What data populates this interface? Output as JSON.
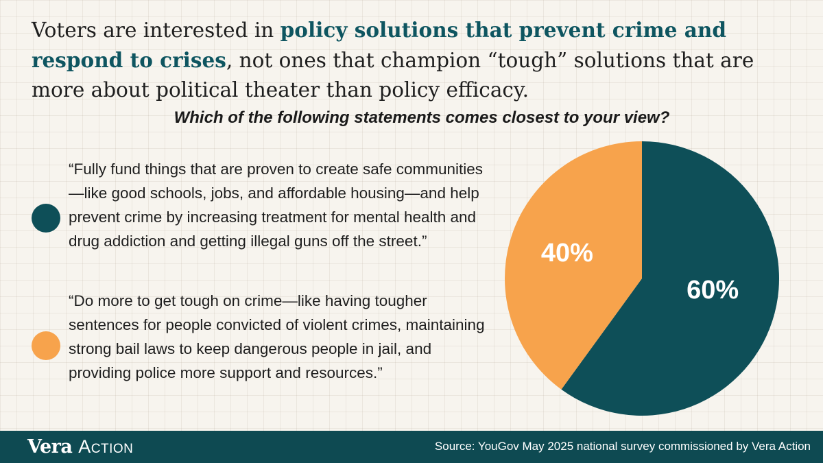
{
  "headline": {
    "part1": "Voters are interested in ",
    "highlight": "policy solutions that prevent crime and respond to crises",
    "part2": ", not ones that champion “tough” solutions that are more about political theater than policy efficacy."
  },
  "question": "Which of the following statements comes closest to your view?",
  "options": [
    {
      "text": "“Fully fund things that are proven to create safe communities—like good schools, jobs, and affordable housing—and help prevent crime by increasing treatment for mental health and drug addiction and getting illegal guns off the street.”",
      "color": "#0e4f58"
    },
    {
      "text": "“Do more to get tough on crime—like having tougher sentences for people convicted of violent crimes, maintaining strong bail laws to keep dangerous people in jail, and providing police more support and resources.”",
      "color": "#f7a34c"
    }
  ],
  "chart_data": {
    "type": "pie",
    "slices": [
      {
        "label": "60%",
        "value": 60,
        "color": "#0e4f58"
      },
      {
        "label": "40%",
        "value": 40,
        "color": "#f7a34c"
      }
    ]
  },
  "footer": {
    "logo_word1": "Vera",
    "logo_word2": "Action",
    "source": "Source: YouGov May 2025 national survey commissioned by Vera Action"
  }
}
